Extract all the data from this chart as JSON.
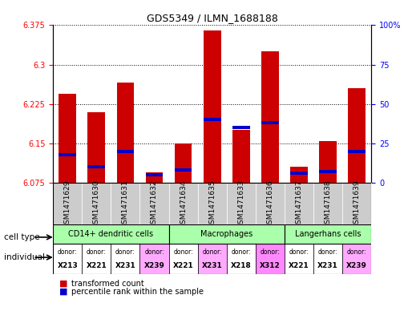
{
  "title": "GDS5349 / ILMN_1688188",
  "samples": [
    "GSM1471629",
    "GSM1471630",
    "GSM1471631",
    "GSM1471632",
    "GSM1471634",
    "GSM1471635",
    "GSM1471633",
    "GSM1471636",
    "GSM1471637",
    "GSM1471638",
    "GSM1471639"
  ],
  "transformed_counts": [
    6.245,
    6.21,
    6.265,
    6.095,
    6.15,
    6.365,
    6.175,
    6.325,
    6.105,
    6.155,
    6.255
  ],
  "percentile_ranks": [
    18,
    10,
    20,
    5,
    8,
    40,
    35,
    38,
    6,
    7,
    20
  ],
  "ylim_left": [
    6.075,
    6.375
  ],
  "ylim_right": [
    0,
    100
  ],
  "yticks_left": [
    6.075,
    6.15,
    6.225,
    6.3,
    6.375
  ],
  "yticks_right": [
    0,
    25,
    50,
    75,
    100
  ],
  "ytick_labels_right": [
    "0",
    "25",
    "50",
    "75",
    "100%"
  ],
  "bar_color": "#cc0000",
  "percentile_color": "#0000cc",
  "cell_type_groups": [
    {
      "label": "CD14+ dendritic cells",
      "start": 0,
      "end": 4,
      "color": "#aaffaa"
    },
    {
      "label": "Macrophages",
      "start": 4,
      "end": 8,
      "color": "#aaffaa"
    },
    {
      "label": "Langerhans cells",
      "start": 8,
      "end": 11,
      "color": "#aaffaa"
    }
  ],
  "individual_labels": [
    {
      "donor": "X213",
      "color": "#ffffff"
    },
    {
      "donor": "X221",
      "color": "#ffffff"
    },
    {
      "donor": "X231",
      "color": "#ffffff"
    },
    {
      "donor": "X239",
      "color": "#ffaaff"
    },
    {
      "donor": "X221",
      "color": "#ffffff"
    },
    {
      "donor": "X231",
      "color": "#ffaaff"
    },
    {
      "donor": "X218",
      "color": "#ffffff"
    },
    {
      "donor": "X312",
      "color": "#ff88ff"
    },
    {
      "donor": "X221",
      "color": "#ffffff"
    },
    {
      "donor": "X231",
      "color": "#ffffff"
    },
    {
      "donor": "X239",
      "color": "#ffaaff"
    }
  ],
  "cell_type_label": "cell type",
  "individual_label": "individual",
  "legend_items": [
    "transformed count",
    "percentile rank within the sample"
  ],
  "base_value": 6.075,
  "bar_width": 0.6,
  "sample_bg_color": "#cccccc",
  "grid_color": "#000000",
  "grid_style": "dotted"
}
